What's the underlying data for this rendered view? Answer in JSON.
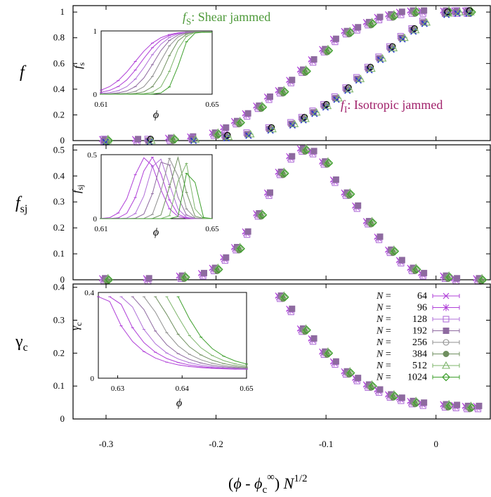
{
  "chart_data": [
    {
      "type": "scatter",
      "panel": "top",
      "ylabel": "f",
      "xlim": [
        -0.33,
        0.05
      ],
      "ylim": [
        0,
        1.05
      ],
      "yticks": [
        "0",
        "0.2",
        "0.4",
        "0.6",
        "0.8",
        "1"
      ],
      "annotations": [
        {
          "text": "fS: Shear jammed",
          "color": "#4e9a3a"
        },
        {
          "text": "fI: Isotropic jammed",
          "color": "#a0206a"
        }
      ],
      "annotation_text": {
        "shear_sym": "f",
        "shear_sub": "S",
        "shear_rest": ": Shear jammed",
        "iso_sym": "f",
        "iso_sub": "I",
        "iso_rest": ": Isotropic jammed"
      },
      "series": [
        {
          "name": "fS",
          "x": [
            -0.3,
            -0.27,
            -0.24,
            -0.22,
            -0.2,
            -0.19,
            -0.18,
            -0.17,
            -0.16,
            -0.15,
            -0.14,
            -0.13,
            -0.12,
            -0.11,
            -0.1,
            -0.09,
            -0.08,
            -0.07,
            -0.06,
            -0.05,
            -0.04,
            -0.03,
            -0.02,
            -0.01,
            0.01,
            0.02,
            0.03
          ],
          "y": [
            0.0,
            0.0,
            0.01,
            0.02,
            0.05,
            0.09,
            0.14,
            0.2,
            0.26,
            0.33,
            0.38,
            0.46,
            0.54,
            0.62,
            0.7,
            0.78,
            0.84,
            0.87,
            0.91,
            0.95,
            0.97,
            0.99,
            1.0,
            1.0,
            1.0,
            1.0,
            1.0
          ]
        },
        {
          "name": "fI",
          "x": [
            -0.3,
            -0.26,
            -0.22,
            -0.19,
            -0.17,
            -0.15,
            -0.13,
            -0.12,
            -0.11,
            -0.1,
            -0.09,
            -0.08,
            -0.07,
            -0.06,
            -0.05,
            -0.04,
            -0.03,
            -0.02,
            -0.01,
            0.01,
            0.02,
            0.03
          ],
          "y": [
            0.0,
            0.0,
            0.01,
            0.03,
            0.05,
            0.09,
            0.13,
            0.17,
            0.22,
            0.27,
            0.33,
            0.4,
            0.48,
            0.56,
            0.64,
            0.72,
            0.8,
            0.86,
            0.92,
            0.99,
            1.0,
            1.0
          ]
        }
      ],
      "inset": {
        "xlabel": "ϕ",
        "ylabel": "fS",
        "xlim": [
          0.61,
          0.65
        ],
        "ylim": [
          0,
          1
        ],
        "xticks": [
          "0.61",
          "0.65"
        ],
        "yticks": [
          "0",
          "1"
        ]
      }
    },
    {
      "type": "scatter",
      "panel": "middle",
      "ylabel": "fSJ",
      "xlim": [
        -0.33,
        0.05
      ],
      "ylim": [
        0,
        0.52
      ],
      "yticks": [
        "0",
        "0.1",
        "0.2",
        "0.3",
        "0.4",
        "0.5"
      ],
      "series": [
        {
          "name": "fSJ",
          "x": [
            -0.3,
            -0.26,
            -0.23,
            -0.21,
            -0.2,
            -0.19,
            -0.18,
            -0.17,
            -0.16,
            -0.15,
            -0.14,
            -0.13,
            -0.12,
            -0.11,
            -0.1,
            -0.09,
            -0.08,
            -0.07,
            -0.06,
            -0.05,
            -0.04,
            -0.03,
            -0.02,
            -0.01,
            0.01,
            0.02,
            0.04
          ],
          "y": [
            0.0,
            0.0,
            0.01,
            0.02,
            0.04,
            0.08,
            0.12,
            0.18,
            0.25,
            0.33,
            0.41,
            0.47,
            0.5,
            0.49,
            0.45,
            0.38,
            0.33,
            0.28,
            0.22,
            0.16,
            0.11,
            0.07,
            0.04,
            0.02,
            0.01,
            0.0,
            0.0
          ]
        }
      ],
      "inset": {
        "xlabel": "ϕ",
        "ylabel": "fSJ",
        "xlim": [
          0.61,
          0.65
        ],
        "ylim": [
          0,
          0.5
        ],
        "xticks": [
          "0.61",
          "0.65"
        ],
        "yticks": [
          "0",
          "0.5"
        ]
      }
    },
    {
      "type": "scatter",
      "panel": "bottom",
      "ylabel": "γc",
      "xlabel": "(ϕ - ϕc∞) N^1/2",
      "xlim": [
        -0.33,
        0.05
      ],
      "ylim": [
        0,
        0.41
      ],
      "yticks": [
        "0",
        "0.1",
        "0.2",
        "0.3",
        "0.4"
      ],
      "xticks": [
        "-0.3",
        "-0.2",
        "-0.1",
        "0"
      ],
      "series": [
        {
          "name": "γc",
          "x": [
            -0.14,
            -0.13,
            -0.12,
            -0.11,
            -0.1,
            -0.09,
            -0.08,
            -0.07,
            -0.06,
            -0.05,
            -0.04,
            -0.03,
            -0.02,
            -0.01,
            0.01,
            0.02,
            0.03,
            0.04
          ],
          "y": [
            0.37,
            0.33,
            0.27,
            0.24,
            0.2,
            0.17,
            0.14,
            0.12,
            0.1,
            0.085,
            0.07,
            0.06,
            0.05,
            0.045,
            0.04,
            0.038,
            0.035,
            0.035
          ]
        }
      ],
      "inset": {
        "xlabel": "ϕ",
        "ylabel": "γc",
        "xlim": [
          0.627,
          0.65
        ],
        "ylim": [
          0,
          0.4
        ],
        "xticks": [
          "0.63",
          "0.64",
          "0.65"
        ],
        "yticks": [
          "0",
          "0.4"
        ]
      }
    }
  ],
  "legend": {
    "title_prefix": "N =",
    "entries": [
      {
        "n": "64",
        "color": "#b040d8",
        "marker": "x"
      },
      {
        "n": "96",
        "color": "#b040d8",
        "marker": "star"
      },
      {
        "n": "128",
        "color": "#b070d8",
        "marker": "sq-open"
      },
      {
        "n": "192",
        "color": "#8e6aa0",
        "marker": "sq-filled"
      },
      {
        "n": "256",
        "color": "#8f8f8f",
        "marker": "circ-open"
      },
      {
        "n": "384",
        "color": "#6f8f5f",
        "marker": "circ-filled"
      },
      {
        "n": "512",
        "color": "#7cb46a",
        "marker": "tri-open"
      },
      {
        "n": "1024",
        "color": "#3fa02e",
        "marker": "diamond"
      }
    ]
  },
  "labels": {
    "xlabel_main": "(ϕ - ϕ",
    "xlabel_sub": "c",
    "xlabel_sup": "∞",
    "xlabel_tail": ") N",
    "xlabel_exp": "1/2",
    "y_top": "f",
    "y_mid": "f",
    "y_mid_sub": "sj",
    "y_bot": "γ",
    "y_bot_sub": "c",
    "in1_y": "f",
    "in1_y_sub": "s",
    "in2_y": "f",
    "in2_y_sub": "sj",
    "in3_y": "γ",
    "in3_y_sub": "c",
    "phi": "ϕ"
  },
  "colors": {
    "shear": "#4e9a3a",
    "iso": "#a0206a",
    "blue": "#2030d0"
  }
}
